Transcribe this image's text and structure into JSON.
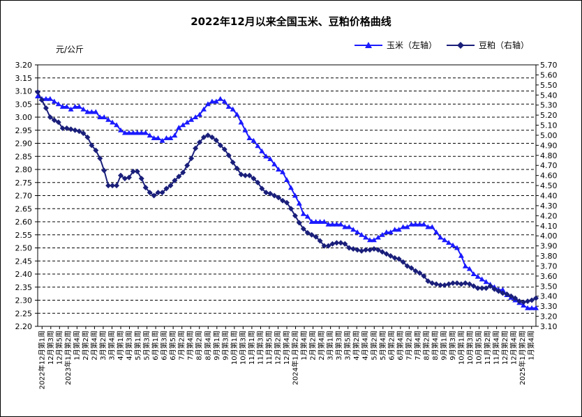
{
  "title": "2022年12月以来全国玉米、豆粕价格曲线",
  "y_unit": "元/公斤",
  "legend": {
    "corn": "玉米（左轴）",
    "soymeal": "豆粕（右轴）"
  },
  "colors": {
    "corn": "#1a1aff",
    "soymeal": "#1a1f7a",
    "grid": "#000000"
  },
  "chart_data": {
    "type": "line",
    "title": "2022年12月以来全国玉米、豆粕价格曲线",
    "ylabel": "元/公斤",
    "y_left": {
      "min": 2.2,
      "max": 3.2,
      "step": 0.05
    },
    "y_right": {
      "min": 3.1,
      "max": 5.7,
      "step": 0.1
    },
    "grid": "horizontal dashed",
    "legend_position": "top-right",
    "x_labels": [
      "2022年12月第1周",
      "12月第3周",
      "12月第5周",
      "2023年1月第2周",
      "1月第4周",
      "2月第2周",
      "2月第4周",
      "3月第2周",
      "3月第4周",
      "4月第1周",
      "4月第3周",
      "5月第1周",
      "5月第3周",
      "6月第1周",
      "6月第3周",
      "6月第5周",
      "7月第2周",
      "7月第4周",
      "8月第2周",
      "8月第4周",
      "9月第1周",
      "9月第3周",
      "10月第1周",
      "10月第3周",
      "11月第1周",
      "11月第3周",
      "11月第5周",
      "12月第2周",
      "12月第4周",
      "2024年1月第2周",
      "1月第4周",
      "2月第2周",
      "2月第4周",
      "3月第1周",
      "3月第3周",
      "3月第5周",
      "4月第2周",
      "4月第4周",
      "5月第2周",
      "5月第4周",
      "6月第2周",
      "6月第4周",
      "7月第2周",
      "7月第4周",
      "8月第2周",
      "8月第4周",
      "9月第1周",
      "9月第3周",
      "10月第1周",
      "10月第3周",
      "10月第5周",
      "11月第2周",
      "11月第4周",
      "12月第2周",
      "12月第4周",
      "2025年1月第2周",
      "1月第4周"
    ],
    "series": [
      {
        "name": "玉米（左轴）",
        "axis": "left",
        "values": [
          3.08,
          3.07,
          3.07,
          3.07,
          3.06,
          3.05,
          3.04,
          3.04,
          3.03,
          3.04,
          3.04,
          3.03,
          3.02,
          3.02,
          3.02,
          3.0,
          3.0,
          2.99,
          2.98,
          2.97,
          2.95,
          2.94,
          2.94,
          2.94,
          2.94,
          2.94,
          2.94,
          2.93,
          2.92,
          2.92,
          2.91,
          2.92,
          2.92,
          2.93,
          2.96,
          2.97,
          2.98,
          2.99,
          3.0,
          3.01,
          3.03,
          3.05,
          3.06,
          3.06,
          3.07,
          3.06,
          3.04,
          3.03,
          3.01,
          2.98,
          2.95,
          2.92,
          2.91,
          2.89,
          2.87,
          2.85,
          2.84,
          2.82,
          2.8,
          2.79,
          2.76,
          2.73,
          2.7,
          2.67,
          2.63,
          2.62,
          2.6,
          2.6,
          2.6,
          2.6,
          2.59,
          2.59,
          2.59,
          2.59,
          2.58,
          2.58,
          2.57,
          2.56,
          2.55,
          2.54,
          2.53,
          2.53,
          2.54,
          2.55,
          2.56,
          2.56,
          2.57,
          2.57,
          2.58,
          2.58,
          2.59,
          2.59,
          2.59,
          2.59,
          2.58,
          2.58,
          2.56,
          2.54,
          2.53,
          2.52,
          2.51,
          2.5,
          2.47,
          2.43,
          2.42,
          2.4,
          2.39,
          2.38,
          2.37,
          2.36,
          2.35,
          2.34,
          2.34,
          2.32,
          2.31,
          2.3,
          2.29,
          2.28,
          2.27,
          2.27,
          2.27
        ]
      },
      {
        "name": "豆粕（右轴）",
        "axis": "right",
        "values": [
          5.43,
          5.35,
          5.27,
          5.18,
          5.15,
          5.13,
          5.07,
          5.07,
          5.06,
          5.05,
          5.04,
          5.02,
          4.98,
          4.9,
          4.85,
          4.77,
          4.65,
          4.5,
          4.5,
          4.5,
          4.6,
          4.57,
          4.58,
          4.64,
          4.64,
          4.57,
          4.48,
          4.43,
          4.4,
          4.43,
          4.43,
          4.47,
          4.5,
          4.55,
          4.59,
          4.63,
          4.7,
          4.77,
          4.87,
          4.93,
          4.98,
          5.0,
          4.98,
          4.95,
          4.9,
          4.86,
          4.8,
          4.73,
          4.67,
          4.61,
          4.6,
          4.6,
          4.57,
          4.53,
          4.47,
          4.43,
          4.42,
          4.4,
          4.38,
          4.35,
          4.33,
          4.27,
          4.2,
          4.13,
          4.07,
          4.03,
          4.01,
          3.99,
          3.95,
          3.9,
          3.9,
          3.92,
          3.93,
          3.93,
          3.92,
          3.88,
          3.87,
          3.86,
          3.85,
          3.86,
          3.86,
          3.87,
          3.86,
          3.84,
          3.82,
          3.8,
          3.78,
          3.77,
          3.74,
          3.7,
          3.68,
          3.65,
          3.63,
          3.6,
          3.55,
          3.53,
          3.52,
          3.51,
          3.51,
          3.52,
          3.53,
          3.53,
          3.52,
          3.53,
          3.52,
          3.5,
          3.48,
          3.48,
          3.48,
          3.5,
          3.47,
          3.45,
          3.43,
          3.42,
          3.4,
          3.38,
          3.35,
          3.34,
          3.35,
          3.36,
          3.38
        ]
      }
    ]
  }
}
